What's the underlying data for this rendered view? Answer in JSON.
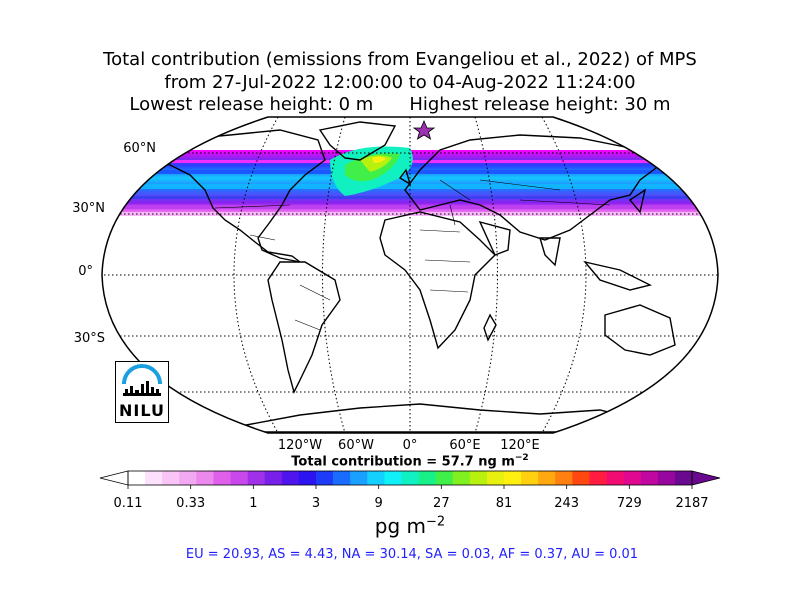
{
  "title": {
    "line1": "Total contribution (emissions from Evangeliou et al., 2022) of MPS",
    "line2": "from 27-Jul-2022 12:00:00 to 04-Aug-2022 11:24:00",
    "line3_left": "Lowest release height: 0 m",
    "line3_right": "Highest release height: 30 m"
  },
  "map": {
    "projection": "robinson",
    "lat_labels": [
      "60°N",
      "30°N",
      "0°",
      "30°S"
    ],
    "lon_labels": [
      "120°W",
      "60°W",
      "0°",
      "60°E",
      "120°E"
    ],
    "gridlines": true,
    "star_marker_color": "#9b30b0",
    "logo": "NILU"
  },
  "total": {
    "label": "Total contribution = 57.7 ng m",
    "superscript": "−2"
  },
  "colorbar": {
    "ticks": [
      "0.11",
      "0.33",
      "1",
      "3",
      "9",
      "27",
      "81",
      "243",
      "729",
      "2187"
    ],
    "unit": "pg m",
    "unit_superscript": "−2",
    "colors": [
      "#ffffff",
      "#fde0fb",
      "#f9c5f6",
      "#f3a8f2",
      "#ec88ee",
      "#e060ec",
      "#c848ec",
      "#a030ea",
      "#7820ea",
      "#5014ec",
      "#2c14f0",
      "#1c3cf8",
      "#1a6cff",
      "#1aa0ff",
      "#14d0ff",
      "#10f0f8",
      "#10f0c0",
      "#18f088",
      "#40f048",
      "#80f020",
      "#b8f010",
      "#e8f010",
      "#fff010",
      "#ffd010",
      "#ffa810",
      "#ff8010",
      "#ff4810",
      "#ff1c40",
      "#f00c70",
      "#e00890",
      "#c008a0",
      "#9806a0",
      "#6a0890"
    ]
  },
  "regions": "EU = 20.93,  AS = 4.43,  NA = 30.14,  SA = 0.03,  AF = 0.37,  AU = 0.01"
}
